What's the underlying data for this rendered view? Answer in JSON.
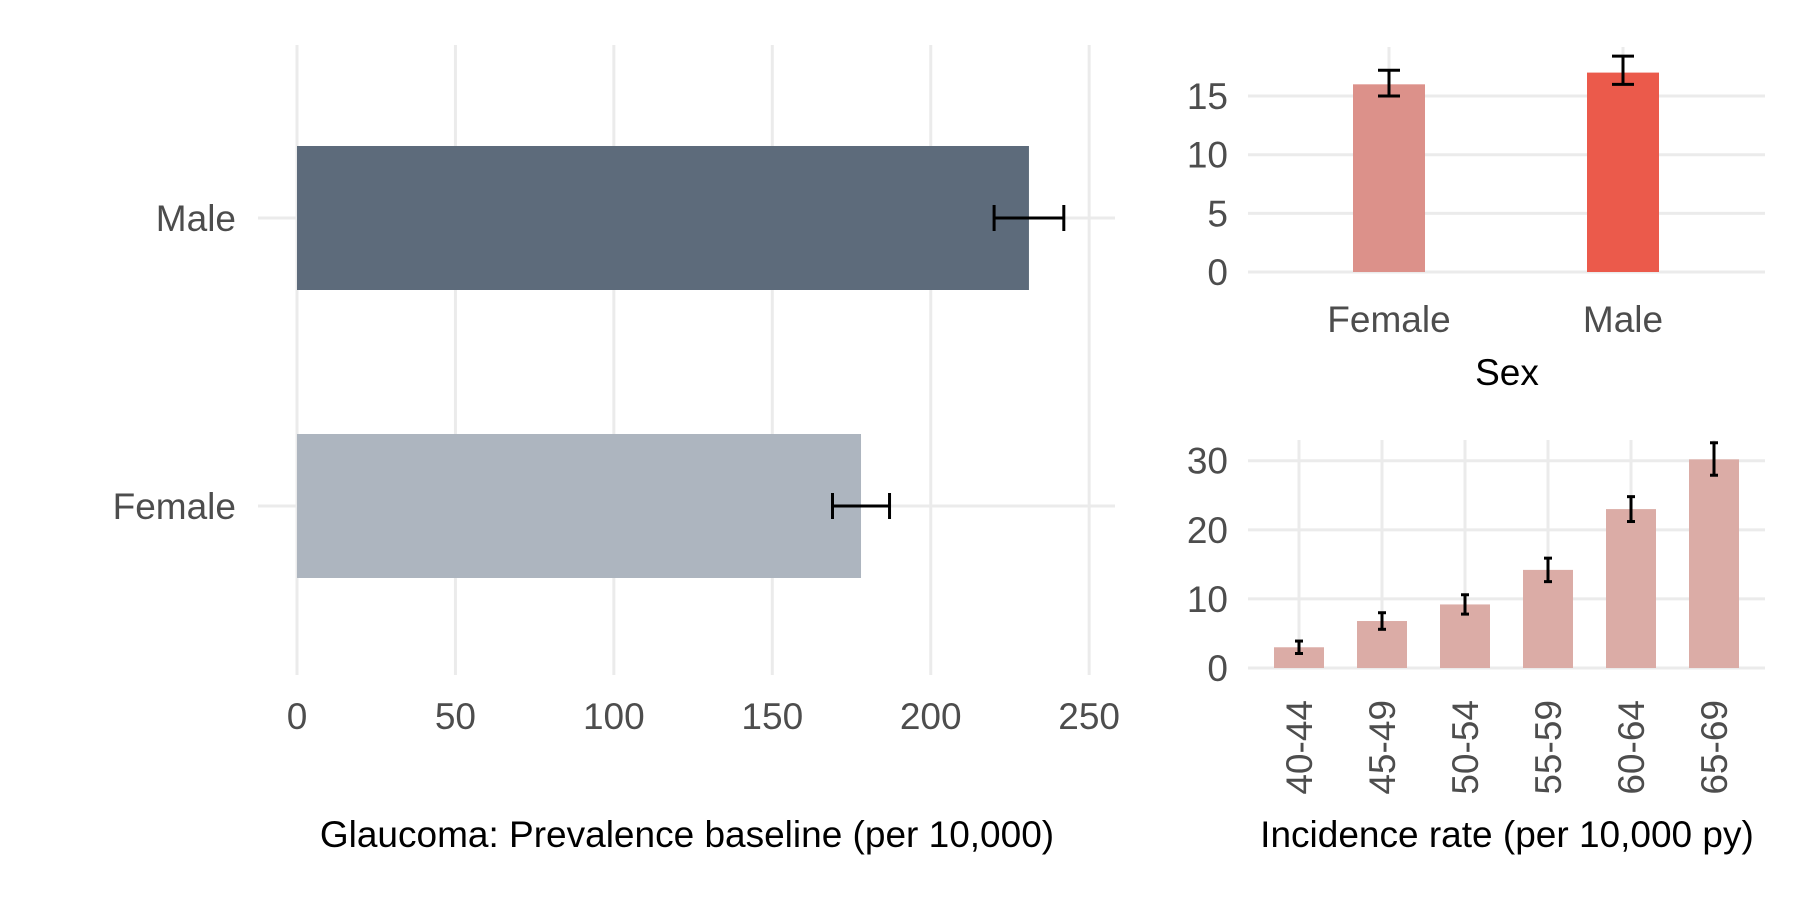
{
  "chart_data": [
    {
      "type": "bar",
      "orientation": "horizontal",
      "categories": [
        "Male",
        "Female"
      ],
      "values": [
        231,
        178
      ],
      "error_low": [
        220,
        169
      ],
      "error_high": [
        242,
        187
      ],
      "colors": [
        "#5d6b7b",
        "#adb5bf"
      ],
      "xlabel": "Glaucoma: Prevalence baseline (per 10,000)",
      "ylabel": "",
      "xlim": [
        0,
        255
      ],
      "xticks": [
        0,
        50,
        100,
        150,
        200,
        250
      ],
      "grid": true
    },
    {
      "type": "bar",
      "orientation": "vertical",
      "categories": [
        "Female",
        "Male"
      ],
      "values": [
        16,
        17
      ],
      "error_low": [
        15,
        16
      ],
      "error_high": [
        17.2,
        18.4
      ],
      "colors": [
        "#dc918a",
        "#eb5a4b"
      ],
      "xlabel": "Sex",
      "ylabel": "",
      "ylim": [
        0,
        18.5
      ],
      "yticks": [
        0,
        5,
        10,
        15
      ],
      "grid": true
    },
    {
      "type": "bar",
      "orientation": "vertical",
      "categories": [
        "40-44",
        "45-49",
        "50-54",
        "55-59",
        "60-64",
        "65-69"
      ],
      "values": [
        3,
        6.8,
        9.2,
        14.2,
        23,
        30.2
      ],
      "error_low": [
        2.1,
        5.6,
        7.8,
        12.5,
        21.2,
        27.9
      ],
      "error_high": [
        3.9,
        8,
        10.6,
        15.9,
        24.8,
        32.6
      ],
      "colors": [
        "#dbaca6"
      ],
      "xlabel": "Incidence rate (per 10,000 py)",
      "ylabel": "",
      "ylim": [
        0,
        33
      ],
      "yticks": [
        0,
        10,
        20,
        30
      ],
      "grid": true
    }
  ]
}
